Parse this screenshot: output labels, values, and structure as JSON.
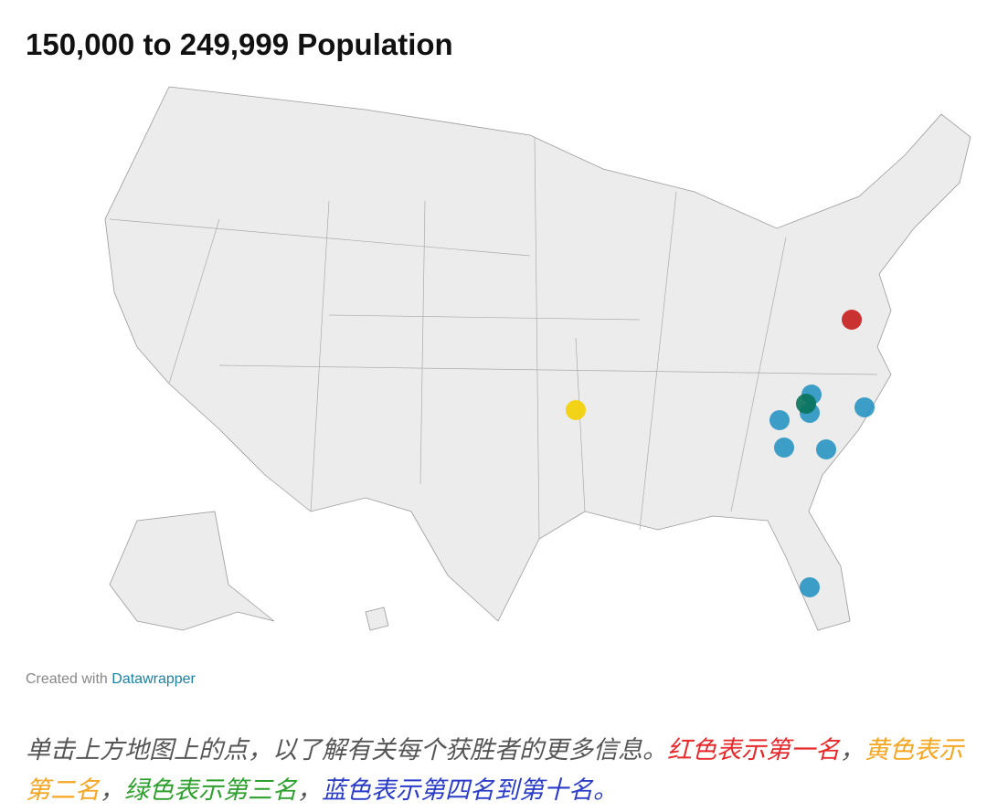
{
  "header": {
    "title": "150,000 to 249,999 Population"
  },
  "credit": {
    "prefix": "Created with",
    "link": "Datawrapper",
    "link_color": "#1d81a2"
  },
  "caption": [
    {
      "text": "单击上方地图上的点，以了解有关每个获胜者的更多信息。",
      "color": "#555555"
    },
    {
      "text": "红色表示第一名",
      "color": "#e8282b"
    },
    {
      "text": "，",
      "color": "#555555"
    },
    {
      "text": "黄色表示第二名",
      "color": "#f5a623"
    },
    {
      "text": "，",
      "color": "#555555"
    },
    {
      "text": "绿色表示第三名",
      "color": "#2ea02e"
    },
    {
      "text": "，",
      "color": "#555555"
    },
    {
      "text": "蓝色表示第四名到第十名。",
      "color": "#2a3cc7"
    }
  ]
}
